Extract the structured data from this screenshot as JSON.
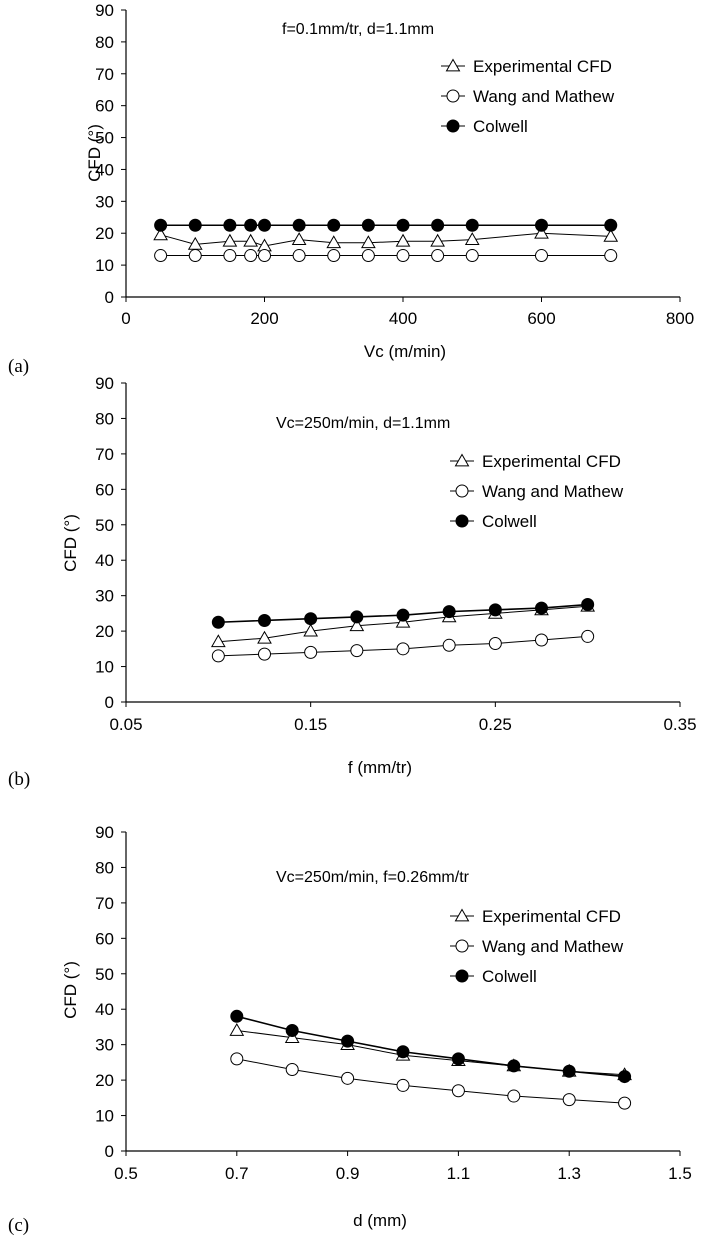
{
  "chart_data": [
    {
      "type": "line",
      "panel_label": "(a)",
      "annotation": "f=0.1mm/tr, d=1.1mm",
      "xlabel": "Vc (m/min)",
      "ylabel": "CFD (°)",
      "xlim": [
        0,
        800
      ],
      "ylim": [
        0,
        90
      ],
      "xticks": [
        0,
        200,
        400,
        600,
        800
      ],
      "xtick_labels": [
        "0",
        "200",
        "400",
        "600",
        "800"
      ],
      "yticks": [
        0,
        10,
        20,
        30,
        40,
        50,
        60,
        70,
        80,
        90
      ],
      "ytick_labels": [
        "0",
        "10",
        "20",
        "30",
        "40",
        "50",
        "60",
        "70",
        "80",
        "90"
      ],
      "grid": false,
      "legend_position": "top-right",
      "series": [
        {
          "name": "Experimental CFD",
          "marker": "triangle-open",
          "x": [
            50,
            100,
            150,
            180,
            200,
            250,
            300,
            350,
            400,
            450,
            500,
            600,
            700
          ],
          "y": [
            19.5,
            16.5,
            17.5,
            17.5,
            16,
            18,
            17,
            17,
            17.5,
            17.5,
            18,
            20,
            19
          ]
        },
        {
          "name": "Wang and Mathew",
          "marker": "circle-open",
          "x": [
            50,
            100,
            150,
            180,
            200,
            250,
            300,
            350,
            400,
            450,
            500,
            600,
            700
          ],
          "y": [
            13,
            13,
            13,
            13,
            13,
            13,
            13,
            13,
            13,
            13,
            13,
            13,
            13
          ]
        },
        {
          "name": "Colwell",
          "marker": "circle-filled",
          "x": [
            50,
            100,
            150,
            180,
            200,
            250,
            300,
            350,
            400,
            450,
            500,
            600,
            700
          ],
          "y": [
            22.5,
            22.5,
            22.5,
            22.5,
            22.5,
            22.5,
            22.5,
            22.5,
            22.5,
            22.5,
            22.5,
            22.5,
            22.5
          ]
        }
      ]
    },
    {
      "type": "line",
      "panel_label": "(b)",
      "annotation": "Vc=250m/min, d=1.1mm",
      "xlabel": "f (mm/tr)",
      "ylabel": "CFD (°)",
      "xlim": [
        0.05,
        0.35
      ],
      "ylim": [
        0,
        90
      ],
      "xticks": [
        0.05,
        0.15,
        0.25,
        0.35
      ],
      "xtick_labels": [
        "0.05",
        "0.15",
        "0.25",
        "0.35"
      ],
      "yticks": [
        0,
        10,
        20,
        30,
        40,
        50,
        60,
        70,
        80,
        90
      ],
      "ytick_labels": [
        "0",
        "10",
        "20",
        "30",
        "40",
        "50",
        "60",
        "70",
        "80",
        "90"
      ],
      "grid": false,
      "legend_position": "top-right",
      "series": [
        {
          "name": "Experimental CFD",
          "marker": "triangle-open",
          "x": [
            0.1,
            0.125,
            0.15,
            0.175,
            0.2,
            0.225,
            0.25,
            0.275,
            0.3
          ],
          "y": [
            17,
            18,
            20,
            21.5,
            22.5,
            24,
            25,
            26,
            27
          ]
        },
        {
          "name": "Wang and Mathew",
          "marker": "circle-open",
          "x": [
            0.1,
            0.125,
            0.15,
            0.175,
            0.2,
            0.225,
            0.25,
            0.275,
            0.3
          ],
          "y": [
            13,
            13.5,
            14,
            14.5,
            15,
            16,
            16.5,
            17.5,
            18.5
          ]
        },
        {
          "name": "Colwell",
          "marker": "circle-filled",
          "x": [
            0.1,
            0.125,
            0.15,
            0.175,
            0.2,
            0.225,
            0.25,
            0.275,
            0.3
          ],
          "y": [
            22.5,
            23,
            23.5,
            24,
            24.5,
            25.5,
            26,
            26.5,
            27.5
          ]
        }
      ]
    },
    {
      "type": "line",
      "panel_label": "(c)",
      "annotation": "Vc=250m/min, f=0.26mm/tr",
      "xlabel": "d (mm)",
      "ylabel": "CFD (°)",
      "xlim": [
        0.5,
        1.5
      ],
      "ylim": [
        0,
        90
      ],
      "xticks": [
        0.5,
        0.7,
        0.9,
        1.1,
        1.3,
        1.5
      ],
      "xtick_labels": [
        "0.5",
        "0.7",
        "0.9",
        "1.1",
        "1.3",
        "1.5"
      ],
      "yticks": [
        0,
        10,
        20,
        30,
        40,
        50,
        60,
        70,
        80,
        90
      ],
      "ytick_labels": [
        "0",
        "10",
        "20",
        "30",
        "40",
        "50",
        "60",
        "70",
        "80",
        "90"
      ],
      "grid": false,
      "legend_position": "top-right",
      "series": [
        {
          "name": "Experimental CFD",
          "marker": "triangle-open",
          "x": [
            0.7,
            0.8,
            0.9,
            1.0,
            1.1,
            1.2,
            1.3,
            1.4
          ],
          "y": [
            34,
            32,
            30,
            27,
            25.5,
            24,
            22.5,
            21.5
          ]
        },
        {
          "name": "Wang and Mathew",
          "marker": "circle-open",
          "x": [
            0.7,
            0.8,
            0.9,
            1.0,
            1.1,
            1.2,
            1.3,
            1.4
          ],
          "y": [
            26,
            23,
            20.5,
            18.5,
            17,
            15.5,
            14.5,
            13.5
          ]
        },
        {
          "name": "Colwell",
          "marker": "circle-filled",
          "x": [
            0.7,
            0.8,
            0.9,
            1.0,
            1.1,
            1.2,
            1.3,
            1.4
          ],
          "y": [
            38,
            34,
            31,
            28,
            26,
            24,
            22.5,
            21
          ]
        }
      ]
    }
  ]
}
